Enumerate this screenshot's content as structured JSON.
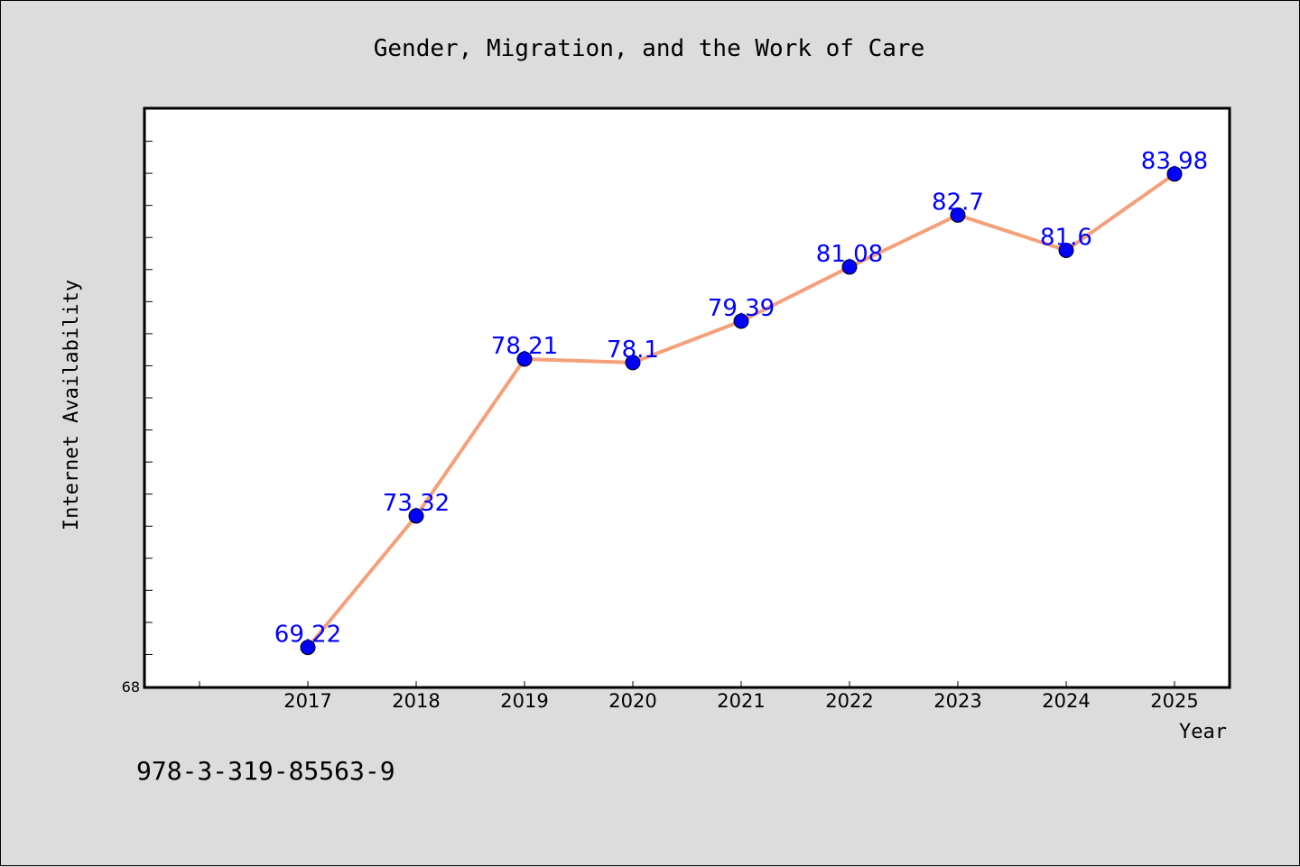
{
  "chart_data": {
    "type": "line",
    "title": "Gender, Migration, and the Work of Care",
    "xlabel": "Year",
    "ylabel": "Internet Availability",
    "categories": [
      "2017",
      "2018",
      "2019",
      "2020",
      "2021",
      "2022",
      "2023",
      "2024",
      "2025"
    ],
    "series": [
      {
        "values": [
          69.22,
          73.32,
          78.21,
          78.1,
          79.39,
          81.08,
          82.7,
          81.6,
          83.98
        ],
        "data_labels": [
          "69.22",
          "73.32",
          "78.21",
          "78.1",
          "79.39",
          "81.08",
          "82.7",
          "81.6",
          "83.98"
        ],
        "line_color": "#f4a07a",
        "marker_color": "#0000ff"
      }
    ],
    "ylim": [
      68,
      86
    ],
    "y_tick_labels": [
      "68"
    ],
    "grid": false,
    "legend": "none",
    "label_color": "#0000ff",
    "background_color": "#dcdcdc",
    "plot_background_color": "#ffffff"
  },
  "footer": {
    "isbn": "978-3-319-85563-9"
  }
}
